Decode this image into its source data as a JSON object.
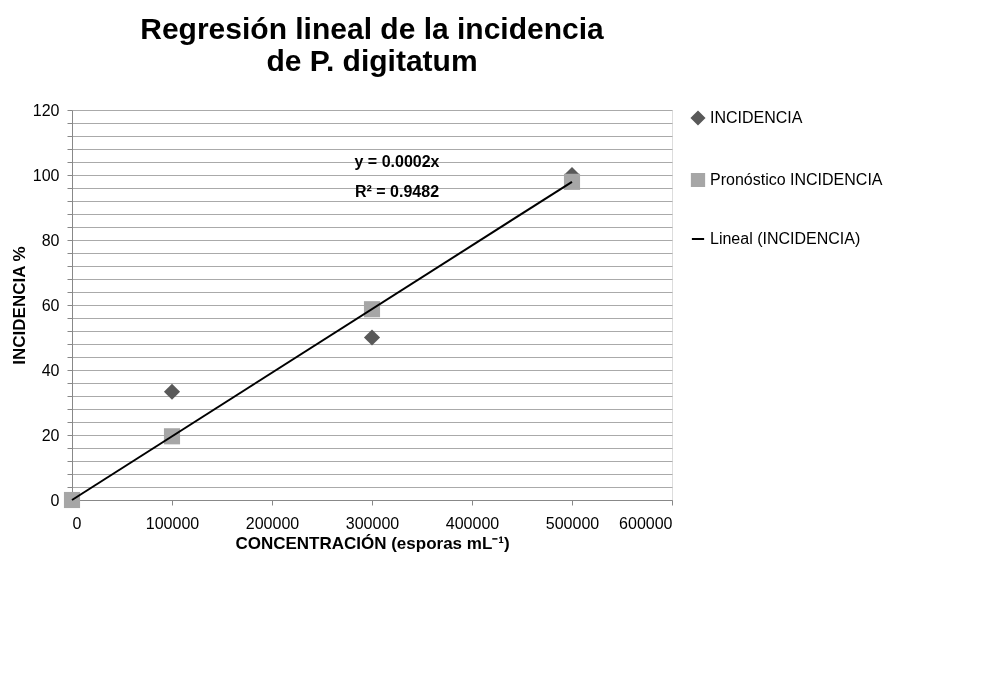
{
  "chart_data": {
    "type": "scatter",
    "title": "Regresión lineal de la incidencia\nde P. digitatum",
    "xlabel": "CONCENTRACIÓN (esporas mL⁻¹)",
    "ylabel": "INCIDENCIA %",
    "x": [
      0,
      100000,
      300000,
      500000
    ],
    "series": [
      {
        "name": "INCIDENCIA",
        "color": "#595959",
        "marker": "diamond",
        "values": [
          null,
          33.3,
          50,
          100
        ]
      },
      {
        "name": "Pronóstico INCIDENCIA",
        "color": "#a6a6a6",
        "marker": "square",
        "values": [
          0,
          19.6,
          58.7,
          97.9
        ]
      },
      {
        "name": "Lineal (INCIDENCIA)",
        "type": "line",
        "color": "#000000",
        "x": [
          0,
          500000
        ],
        "values": [
          0,
          97.9
        ]
      }
    ],
    "xlim": [
      0,
      600000
    ],
    "xticks": [
      0,
      100000,
      200000,
      300000,
      400000,
      500000,
      600000
    ],
    "ylim": [
      0,
      120
    ],
    "yticks": [
      0,
      {
        "value": 4,
        "label": null
      },
      {
        "value": 8,
        "label": null
      },
      {
        "value": 12,
        "label": null
      },
      {
        "value": 16,
        "label": null
      },
      20,
      {
        "value": 24,
        "label": null
      },
      {
        "value": 28,
        "label": null
      },
      {
        "value": 32,
        "label": null
      },
      {
        "value": 36,
        "label": null
      },
      40,
      {
        "value": 44,
        "label": null
      },
      {
        "value": 48,
        "label": null
      },
      {
        "value": 52,
        "label": null
      },
      {
        "value": 56,
        "label": null
      },
      60,
      {
        "value": 64,
        "label": null
      },
      {
        "value": 68,
        "label": null
      },
      {
        "value": 72,
        "label": null
      },
      {
        "value": 76,
        "label": null
      },
      80,
      {
        "value": 84,
        "label": null
      },
      {
        "value": 88,
        "label": null
      },
      {
        "value": 92,
        "label": null
      },
      {
        "value": 96,
        "label": null
      },
      100,
      {
        "value": 104,
        "label": null
      },
      {
        "value": 108,
        "label": null
      },
      {
        "value": 112,
        "label": null
      },
      {
        "value": 116,
        "label": null
      },
      120
    ],
    "grid": "y",
    "legend": "right",
    "annotations": [
      "y = 0.0002x",
      "R² = 0.9482"
    ]
  }
}
